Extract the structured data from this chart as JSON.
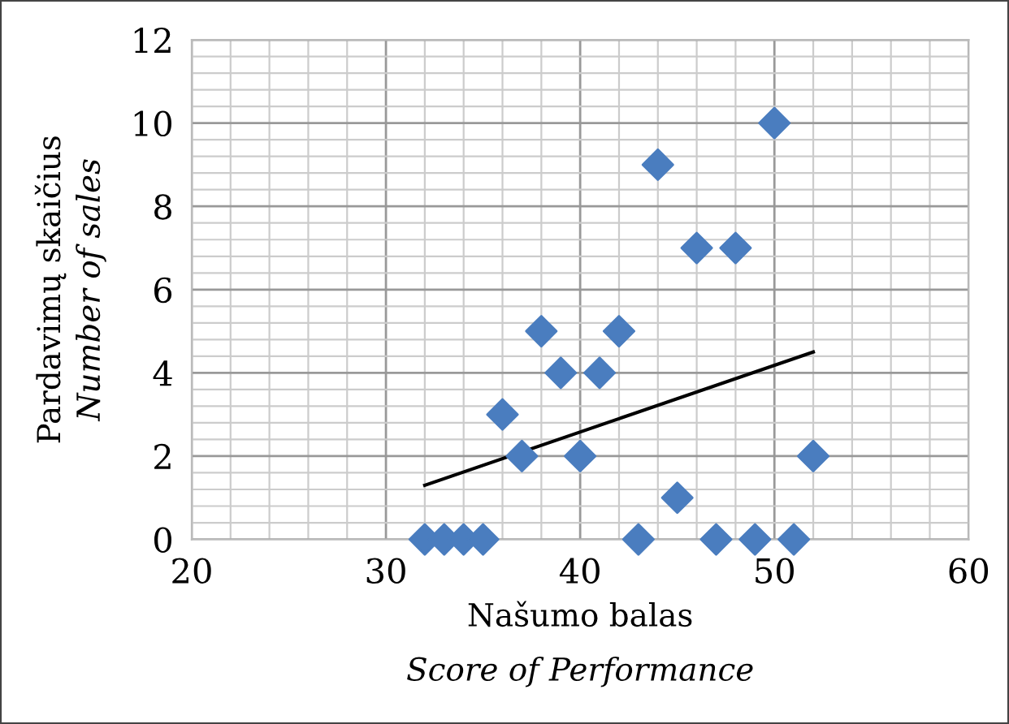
{
  "chart_data": {
    "type": "scatter",
    "xlabel": "Našumo balas\nScore of Performance",
    "ylabel": "Pardavimų skaičius\nNumber of sales",
    "xlim": [
      20,
      60
    ],
    "xticks": [
      20,
      30,
      40,
      50,
      60
    ],
    "ylim": [
      0,
      12
    ],
    "yticks": [
      0,
      2,
      4,
      6,
      8,
      10,
      12
    ],
    "grid": true,
    "series": [
      {
        "marker": "diamond",
        "color": "#4a7dbf",
        "x": [
          32,
          33,
          34,
          35,
          36,
          37,
          38,
          39,
          40,
          41,
          42,
          43,
          44,
          45,
          46,
          47,
          48,
          49,
          50,
          51,
          52
        ],
        "values": [
          0,
          0,
          0,
          0,
          3,
          2,
          5,
          4,
          2,
          4,
          5,
          0,
          9,
          1,
          7,
          0,
          7,
          0,
          10,
          0,
          2
        ]
      },
      {
        "type": "line",
        "color": "#000000",
        "x": [
          32,
          52
        ],
        "values": [
          1.3,
          4.5
        ]
      }
    ]
  }
}
